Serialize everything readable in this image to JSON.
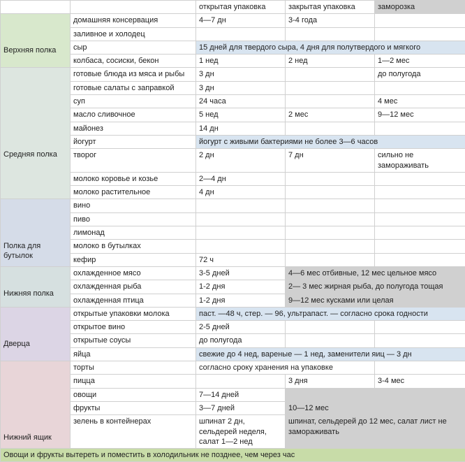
{
  "headers": {
    "open": "открытая упаковка",
    "closed": "закрытая упаковка",
    "frozen": "заморозка"
  },
  "sections": {
    "upper": "Верхняя полка",
    "middle": "Средняя полка",
    "bottle": "Полка для бутылок",
    "lower": "Нижняя полка",
    "door": "Дверца",
    "drawer": "Нижний ящик"
  },
  "items": {
    "konserv": "домашняя консервация",
    "konserv_o": "4—7 дн",
    "konserv_c": "3-4 года",
    "zalivnoe": "заливное и холодец",
    "syr": "сыр",
    "syr_note": "15 дней для твердого сыра, 4 дня для полутвердого и мягкого",
    "kolbasa": "колбаса, сосиски, бекон",
    "kolbasa_o": "1 нед",
    "kolbasa_c": "2 нед",
    "kolbasa_f": "1—2 мес",
    "gotmr": "готовые блюда из мяса и рыбы",
    "gotmr_o": "3 дн",
    "gotmr_f": "до полугода",
    "salat": "готовые салаты с заправкой",
    "salat_o": "3 дн",
    "sup": "суп",
    "sup_o": "24 часа",
    "sup_f": "4 мес",
    "maslo": "масло сливочное",
    "maslo_o": "5 нед",
    "maslo_c": "2 мес",
    "maslo_f": "9—12 мес",
    "mayo": "майонез",
    "mayo_o": "14 дн",
    "yog": "йогурт",
    "yog_note": "йогурт с живыми бактериями не более 3—6 часов",
    "tvorog": "творог",
    "tvorog_o": "2 дн",
    "tvorog_c": "7 дн",
    "tvorog_f": "сильно не замораживать",
    "molkk": "молоко коровье и козье",
    "molkk_o": "2—4 дн",
    "molr": "молоко растительное",
    "molr_o": "4 дн",
    "vino": "вино",
    "pivo": "пиво",
    "limonad": "лимонад",
    "molbut": "молоко в бутылках",
    "kefir": "кефир",
    "kefir_o": "72 ч",
    "meat": "охлажденное мясо",
    "meat_o": "3-5 дней",
    "meat_f": "4—6 мес отбивные, 12 мес цельное мясо",
    "fish": "охлажденная рыба",
    "fish_o": "1-2 дня",
    "fish_f": "2— 3 мес жирная рыба, до полугода тощая",
    "bird": "охлажденная птица",
    "bird_o": "1-2 дня",
    "bird_f": "9—12 мес кусками или целая",
    "opmol": "открытые упаковки молока",
    "opmol_note": "паст. —48 ч, стер. — 96, ультрапаст. — согласно срока годности",
    "opvino": "открытое вино",
    "opvino_o": "2-5 дней",
    "opsous": "открытые соусы",
    "opsous_o": "до полугода",
    "eggs": "яйца",
    "eggs_note": "свежие до 4 нед, вареные — 1 нед, заменители яиц — 3 дн",
    "torty": "торты",
    "torty_o": "согласно сроку хранения на упаковке",
    "pizza": "пицца",
    "pizza_c": "3 дня",
    "pizza_f": "3-4 мес",
    "ovo": "овощи",
    "ovo_o": "7—14 дней",
    "fru": "фрукты",
    "fru_o": "3—7 дней",
    "fru_f": "10—12 мес",
    "zel": "зелень в контейнерах",
    "zel_o": "шпинат 2 дн, сельдерей неделя, салат 1—2 нед",
    "zel_f": "шпинат, сельдерей до 12 мес, салат лист не замораживать"
  },
  "footer": "Овощи и фрукты вытереть и поместить в холодильник не позднее, чем через час",
  "colors": {
    "sec_upper": "#d8e8cc",
    "sec_middle": "#dde6e0",
    "sec_bottle": "#d5dce8",
    "sec_lower": "#d6e0e0",
    "sec_door": "#dcd5e5",
    "sec_drawer": "#e8d5d8",
    "hl_blue": "#d8e4f0",
    "hl_gray": "#d0d0d0",
    "footer": "#c8dca8",
    "border": "#d0d0d0"
  }
}
